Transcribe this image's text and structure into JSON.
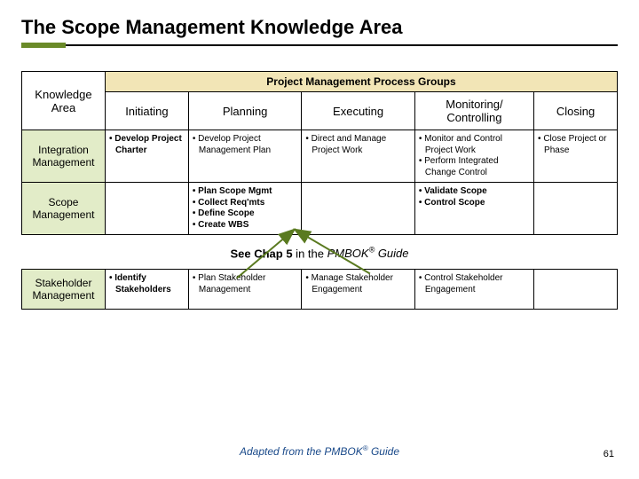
{
  "title": "The Scope Management Knowledge Area",
  "accent_color": "#6a8a28",
  "ka_bg": "#e2ecc8",
  "pg_bg": "#f2e5b6",
  "table1": {
    "groups_header": "Project Management Process Groups",
    "ka_label": "Knowledge Area",
    "cols": [
      "Initiating",
      "Planning",
      "Executing",
      "Monitoring/ Controlling",
      "Closing"
    ],
    "rows": [
      {
        "ka": "Integration Management",
        "cells": [
          [
            "Develop Project Charter"
          ],
          [
            "Develop Project Management Plan"
          ],
          [
            "Direct and Manage Project  Work"
          ],
          [
            "Monitor and Control Project Work",
            "Perform Integrated Change Control"
          ],
          [
            "Close Project or Phase"
          ]
        ],
        "bold_col0": true
      },
      {
        "ka": "Scope Management",
        "cells": [
          [],
          [
            "Plan Scope Mgmt",
            "Collect Req'mts",
            "Define Scope",
            "Create WBS"
          ],
          [],
          [
            "Validate Scope",
            "Control Scope"
          ],
          []
        ],
        "bold_col1": true
      }
    ]
  },
  "caption": {
    "pre": "See Chap 5",
    "mid": " in the ",
    "book": "PMBOK",
    "post": " Guide"
  },
  "table2": {
    "row": {
      "ka": "Stakeholder Management",
      "cells": [
        [
          "Identify Stakeholders"
        ],
        [
          "Plan Stakeholder Management"
        ],
        [
          "Manage Stakeholder Engagement"
        ],
        [
          "Control Stakeholder Engagement"
        ],
        []
      ],
      "bold_col0": true
    }
  },
  "footer": {
    "pre": "Adapted from the ",
    "book": "PMBOK",
    "post": " Guide"
  },
  "page_number": "61",
  "arrow_color": "#5a7a20"
}
